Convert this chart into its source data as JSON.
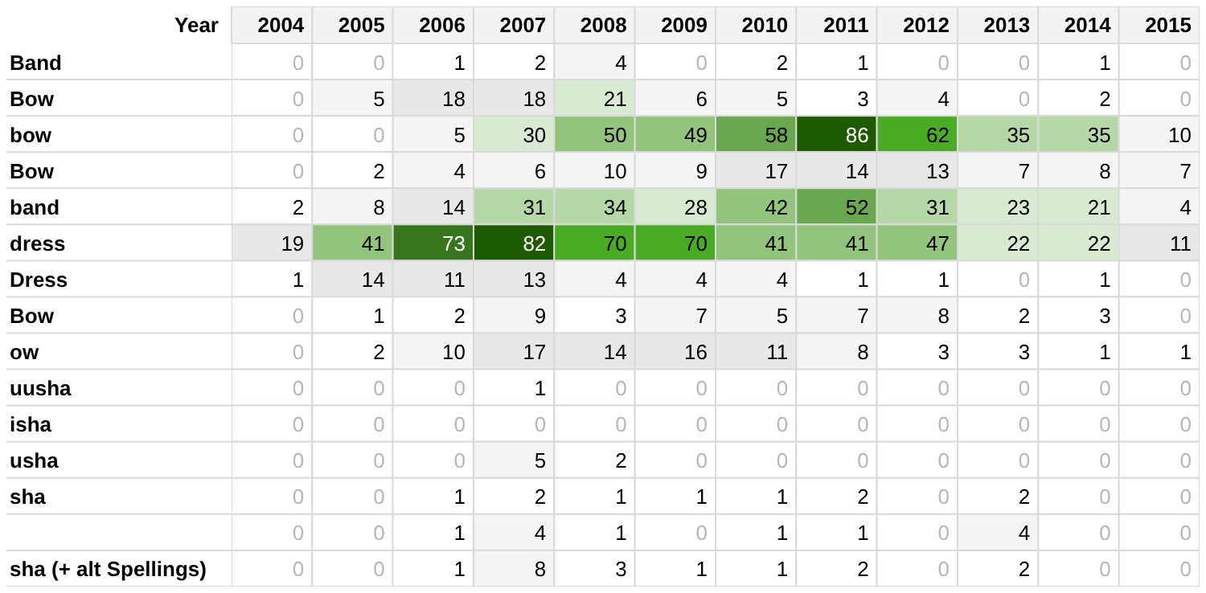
{
  "chart_data": {
    "type": "heatmap",
    "xlabel": "Year",
    "data_labels": true,
    "categories": [
      "2004",
      "2005",
      "2006",
      "2007",
      "2008",
      "2009",
      "2010",
      "2011",
      "2012",
      "2013",
      "2014",
      "2015"
    ],
    "y_categories": [
      "Band",
      "Bow",
      "bow",
      "Bow",
      "band",
      "dress",
      "Dress",
      "Bow",
      "ow",
      "uusha",
      "isha",
      "usha",
      "sha",
      null,
      "sha (+ alt Spellings)"
    ],
    "cells": [
      [
        0,
        0,
        1,
        2,
        4,
        0,
        2,
        1,
        0,
        0,
        1,
        0
      ],
      [
        0,
        5,
        18,
        18,
        21,
        6,
        5,
        3,
        4,
        0,
        2,
        0
      ],
      [
        0,
        0,
        5,
        30,
        50,
        49,
        58,
        86,
        62,
        35,
        35,
        10
      ],
      [
        0,
        2,
        4,
        6,
        10,
        9,
        17,
        14,
        13,
        7,
        8,
        7
      ],
      [
        2,
        8,
        14,
        31,
        34,
        28,
        42,
        52,
        31,
        23,
        21,
        4
      ],
      [
        19,
        41,
        73,
        82,
        70,
        70,
        41,
        41,
        47,
        22,
        22,
        11
      ],
      [
        1,
        14,
        11,
        13,
        4,
        4,
        4,
        1,
        1,
        0,
        1,
        0
      ],
      [
        0,
        1,
        2,
        9,
        3,
        7,
        5,
        7,
        8,
        2,
        3,
        0
      ],
      [
        0,
        2,
        10,
        17,
        14,
        16,
        11,
        8,
        3,
        3,
        1,
        1
      ],
      [
        0,
        0,
        0,
        1,
        0,
        0,
        0,
        0,
        0,
        0,
        0,
        0
      ],
      [
        0,
        0,
        0,
        0,
        0,
        0,
        0,
        0,
        0,
        0,
        0,
        0
      ],
      [
        0,
        0,
        0,
        5,
        2,
        0,
        0,
        0,
        0,
        0,
        0,
        0
      ],
      [
        0,
        0,
        1,
        2,
        1,
        1,
        1,
        2,
        0,
        2,
        0,
        0
      ],
      [
        0,
        0,
        1,
        4,
        1,
        0,
        1,
        1,
        0,
        4,
        0,
        0
      ],
      [
        0,
        0,
        1,
        8,
        3,
        1,
        1,
        2,
        0,
        2,
        0,
        0
      ]
    ]
  }
}
